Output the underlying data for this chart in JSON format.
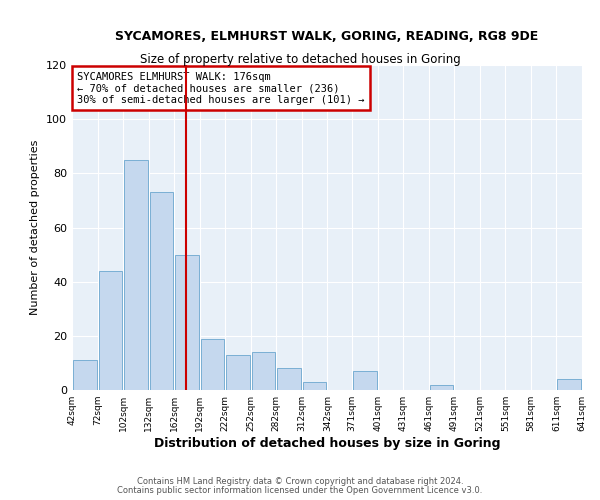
{
  "title1": "SYCAMORES, ELMHURST WALK, GORING, READING, RG8 9DE",
  "title2": "Size of property relative to detached houses in Goring",
  "xlabel": "Distribution of detached houses by size in Goring",
  "ylabel": "Number of detached properties",
  "bins": [
    42,
    72,
    102,
    132,
    162,
    192,
    222,
    252,
    282,
    312,
    342,
    371,
    401,
    431,
    461,
    491,
    521,
    551,
    581,
    611,
    641
  ],
  "bin_labels": [
    "42sqm",
    "72sqm",
    "102sqm",
    "132sqm",
    "162sqm",
    "192sqm",
    "222sqm",
    "252sqm",
    "282sqm",
    "312sqm",
    "342sqm",
    "371sqm",
    "401sqm",
    "431sqm",
    "461sqm",
    "491sqm",
    "521sqm",
    "551sqm",
    "581sqm",
    "611sqm",
    "641sqm"
  ],
  "counts": [
    11,
    44,
    85,
    73,
    50,
    19,
    13,
    14,
    8,
    3,
    0,
    7,
    0,
    0,
    2,
    0,
    0,
    0,
    0,
    4
  ],
  "bar_color": "#c5d8ee",
  "bar_edge_color": "#7aafd4",
  "reference_line_x": 176,
  "annotation_line1": "SYCAMORES ELMHURST WALK: 176sqm",
  "annotation_line2": "← 70% of detached houses are smaller (236)",
  "annotation_line3": "30% of semi-detached houses are larger (101) →",
  "annotation_box_edge_color": "#cc0000",
  "annotation_line_color": "#cc0000",
  "ylim": [
    0,
    120
  ],
  "yticks": [
    0,
    20,
    40,
    60,
    80,
    100,
    120
  ],
  "footer1": "Contains HM Land Registry data © Crown copyright and database right 2024.",
  "footer2": "Contains public sector information licensed under the Open Government Licence v3.0.",
  "background_color": "#ffffff",
  "plot_bg_color": "#e8f0f8",
  "grid_color": "#ffffff"
}
